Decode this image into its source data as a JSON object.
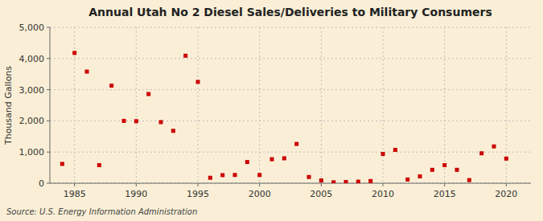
{
  "chart_data": {
    "type": "scatter",
    "title": "Annual Utah No 2 Diesel Sales/Deliveries to Military Consumers",
    "ylabel": "Thousand Gallons",
    "annotations": [
      "Source: U.S. Energy Information Administration"
    ],
    "x": [
      1984,
      1985,
      1986,
      1987,
      1988,
      1989,
      1990,
      1991,
      1992,
      1993,
      1994,
      1995,
      1996,
      1997,
      1998,
      1999,
      2000,
      2001,
      2002,
      2003,
      2004,
      2005,
      2006,
      2007,
      2008,
      2009,
      2010,
      2011,
      2012,
      2013,
      2014,
      2015,
      2016,
      2017,
      2018,
      2019,
      2020
    ],
    "values": [
      620,
      4180,
      3580,
      580,
      3130,
      2000,
      1990,
      2860,
      1960,
      1680,
      4090,
      3250,
      175,
      260,
      265,
      680,
      265,
      770,
      800,
      1260,
      200,
      90,
      30,
      40,
      50,
      70,
      940,
      1070,
      120,
      220,
      430,
      580,
      430,
      100,
      960,
      1180,
      790
    ],
    "color": "#cc0000",
    "marker": "square",
    "grid": true,
    "xlim": [
      1983,
      2022
    ],
    "ylim": [
      0,
      5000
    ],
    "xticks": [
      1985,
      1990,
      1995,
      2000,
      2005,
      2010,
      2015,
      2020
    ],
    "yticks": [
      0,
      {
        "value": 1000,
        "label": "1,000"
      },
      {
        "value": 2000,
        "label": "2,000"
      },
      {
        "value": 3000,
        "label": "3,000"
      },
      {
        "value": 4000,
        "label": "4,000"
      },
      {
        "value": 5000,
        "label": "5,000"
      }
    ]
  }
}
